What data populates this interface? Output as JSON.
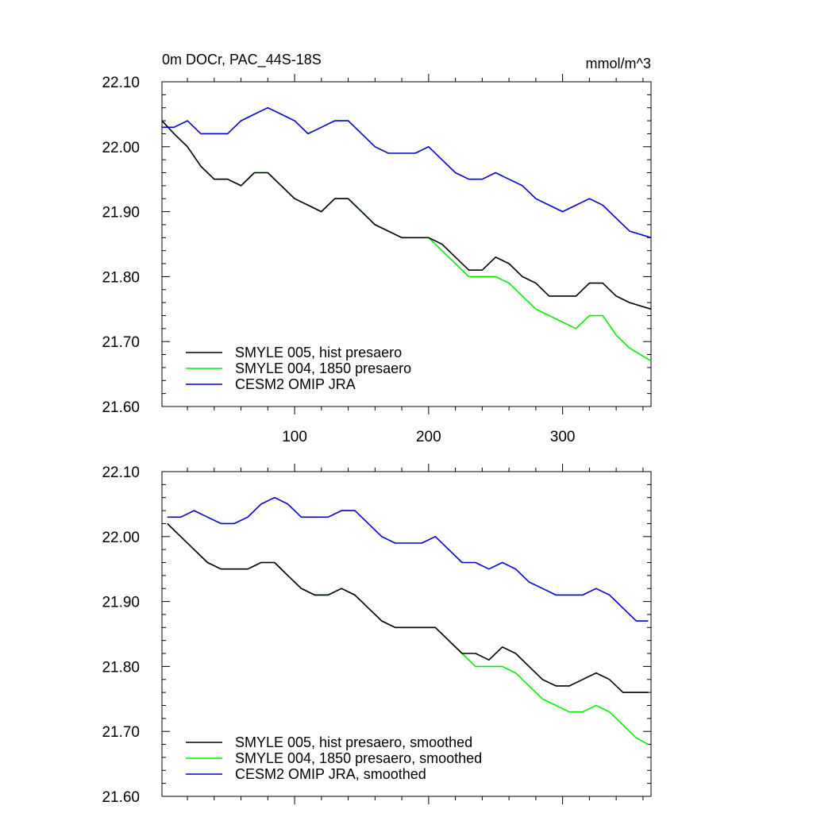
{
  "colors": {
    "hist": "#000000",
    "pre1850": "#00ee00",
    "omip": "#0000cc",
    "axis": "#000000",
    "background": "#ffffff"
  },
  "chart_data": [
    {
      "type": "line",
      "title": "0m DOCr, PAC_44S-18S",
      "units": "mmol/m^3",
      "xlim": [
        1,
        366
      ],
      "ylim": [
        21.6,
        22.1
      ],
      "xticks": [
        100,
        200,
        300
      ],
      "xtick_labels": [
        "100",
        "200",
        "300"
      ],
      "yticks": [
        21.6,
        21.7,
        21.8,
        21.9,
        22.0,
        22.1
      ],
      "ytick_labels": [
        "21.60",
        "21.70",
        "21.80",
        "21.90",
        "22.00",
        "22.10"
      ],
      "legend_position": "bottom-left",
      "smoothed": false,
      "series": [
        {
          "name": "SMYLE 005, hist presaero",
          "color_key": "hist",
          "x": [
            1,
            10,
            20,
            30,
            40,
            50,
            60,
            70,
            80,
            90,
            100,
            110,
            120,
            130,
            140,
            150,
            160,
            170,
            180,
            190,
            200,
            210,
            220,
            230,
            240,
            250,
            260,
            270,
            280,
            290,
            300,
            310,
            320,
            330,
            340,
            350,
            366
          ],
          "y": [
            22.04,
            22.02,
            22.0,
            21.97,
            21.95,
            21.95,
            21.94,
            21.96,
            21.96,
            21.94,
            21.92,
            21.91,
            21.9,
            21.92,
            21.92,
            21.9,
            21.88,
            21.87,
            21.86,
            21.86,
            21.86,
            21.85,
            21.83,
            21.81,
            21.81,
            21.83,
            21.82,
            21.8,
            21.79,
            21.77,
            21.77,
            21.77,
            21.79,
            21.79,
            21.77,
            21.76,
            21.75
          ]
        },
        {
          "name": "SMYLE 004, 1850 presaero",
          "color_key": "pre1850",
          "x": [
            1,
            10,
            20,
            30,
            40,
            50,
            60,
            70,
            80,
            90,
            100,
            110,
            120,
            130,
            140,
            150,
            160,
            170,
            180,
            190,
            200,
            210,
            220,
            230,
            240,
            250,
            260,
            270,
            280,
            290,
            300,
            310,
            320,
            330,
            340,
            350,
            366
          ],
          "y": [
            22.04,
            22.02,
            22.0,
            21.97,
            21.95,
            21.95,
            21.94,
            21.96,
            21.96,
            21.94,
            21.92,
            21.91,
            21.9,
            21.92,
            21.92,
            21.9,
            21.88,
            21.87,
            21.86,
            21.86,
            21.86,
            21.84,
            21.82,
            21.8,
            21.8,
            21.8,
            21.79,
            21.77,
            21.75,
            21.74,
            21.73,
            21.72,
            21.74,
            21.74,
            21.71,
            21.69,
            21.67
          ]
        },
        {
          "name": "CESM2 OMIP JRA",
          "color_key": "omip",
          "x": [
            1,
            10,
            20,
            30,
            40,
            50,
            60,
            70,
            80,
            90,
            100,
            110,
            120,
            130,
            140,
            150,
            160,
            170,
            180,
            190,
            200,
            210,
            220,
            230,
            240,
            250,
            260,
            270,
            280,
            290,
            300,
            310,
            320,
            330,
            340,
            350,
            366
          ],
          "y": [
            22.03,
            22.03,
            22.04,
            22.02,
            22.02,
            22.02,
            22.04,
            22.05,
            22.06,
            22.05,
            22.04,
            22.02,
            22.03,
            22.04,
            22.04,
            22.02,
            22.0,
            21.99,
            21.99,
            21.99,
            22.0,
            21.98,
            21.96,
            21.95,
            21.95,
            21.96,
            21.95,
            21.94,
            21.92,
            21.91,
            21.9,
            21.91,
            21.92,
            21.91,
            21.89,
            21.87,
            21.86
          ]
        }
      ]
    },
    {
      "type": "line",
      "title": "",
      "units": "",
      "xlim": [
        1,
        366
      ],
      "ylim": [
        21.6,
        22.1
      ],
      "xticks": [
        100,
        200,
        300
      ],
      "xtick_labels": [
        "",
        "",
        ""
      ],
      "yticks": [
        21.6,
        21.7,
        21.8,
        21.9,
        22.0,
        22.1
      ],
      "ytick_labels": [
        "21.60",
        "21.70",
        "21.80",
        "21.90",
        "22.00",
        "22.10"
      ],
      "legend_position": "bottom-left",
      "smoothed": true,
      "series": [
        {
          "name": "SMYLE 005, hist presaero, smoothed",
          "color_key": "hist",
          "x": [
            5,
            15,
            25,
            35,
            45,
            55,
            65,
            75,
            85,
            95,
            105,
            115,
            125,
            135,
            145,
            155,
            165,
            175,
            185,
            195,
            205,
            215,
            225,
            235,
            245,
            255,
            265,
            275,
            285,
            295,
            305,
            315,
            325,
            335,
            345,
            355,
            364
          ],
          "y": [
            22.02,
            22.0,
            21.98,
            21.96,
            21.95,
            21.95,
            21.95,
            21.96,
            21.96,
            21.94,
            21.92,
            21.91,
            21.91,
            21.92,
            21.91,
            21.89,
            21.87,
            21.86,
            21.86,
            21.86,
            21.86,
            21.84,
            21.82,
            21.82,
            21.81,
            21.83,
            21.82,
            21.8,
            21.78,
            21.77,
            21.77,
            21.78,
            21.79,
            21.78,
            21.76,
            21.76,
            21.76
          ]
        },
        {
          "name": "SMYLE 004, 1850 presaero, smoothed",
          "color_key": "pre1850",
          "x": [
            5,
            15,
            25,
            35,
            45,
            55,
            65,
            75,
            85,
            95,
            105,
            115,
            125,
            135,
            145,
            155,
            165,
            175,
            185,
            195,
            205,
            215,
            225,
            235,
            245,
            255,
            265,
            275,
            285,
            295,
            305,
            315,
            325,
            335,
            345,
            355,
            364
          ],
          "y": [
            22.02,
            22.0,
            21.98,
            21.96,
            21.95,
            21.95,
            21.95,
            21.96,
            21.96,
            21.94,
            21.92,
            21.91,
            21.91,
            21.92,
            21.91,
            21.89,
            21.87,
            21.86,
            21.86,
            21.86,
            21.86,
            21.84,
            21.82,
            21.8,
            21.8,
            21.8,
            21.79,
            21.77,
            21.75,
            21.74,
            21.73,
            21.73,
            21.74,
            21.73,
            21.71,
            21.69,
            21.68
          ]
        },
        {
          "name": "CESM2 OMIP JRA, smoothed",
          "color_key": "omip",
          "x": [
            5,
            15,
            25,
            35,
            45,
            55,
            65,
            75,
            85,
            95,
            105,
            115,
            125,
            135,
            145,
            155,
            165,
            175,
            185,
            195,
            205,
            215,
            225,
            235,
            245,
            255,
            265,
            275,
            285,
            295,
            305,
            315,
            325,
            335,
            345,
            355,
            364
          ],
          "y": [
            22.03,
            22.03,
            22.04,
            22.03,
            22.02,
            22.02,
            22.03,
            22.05,
            22.06,
            22.05,
            22.03,
            22.03,
            22.03,
            22.04,
            22.04,
            22.02,
            22.0,
            21.99,
            21.99,
            21.99,
            22.0,
            21.98,
            21.96,
            21.96,
            21.95,
            21.96,
            21.95,
            21.93,
            21.92,
            21.91,
            21.91,
            21.91,
            21.92,
            21.91,
            21.89,
            21.87,
            21.87
          ]
        }
      ]
    }
  ]
}
